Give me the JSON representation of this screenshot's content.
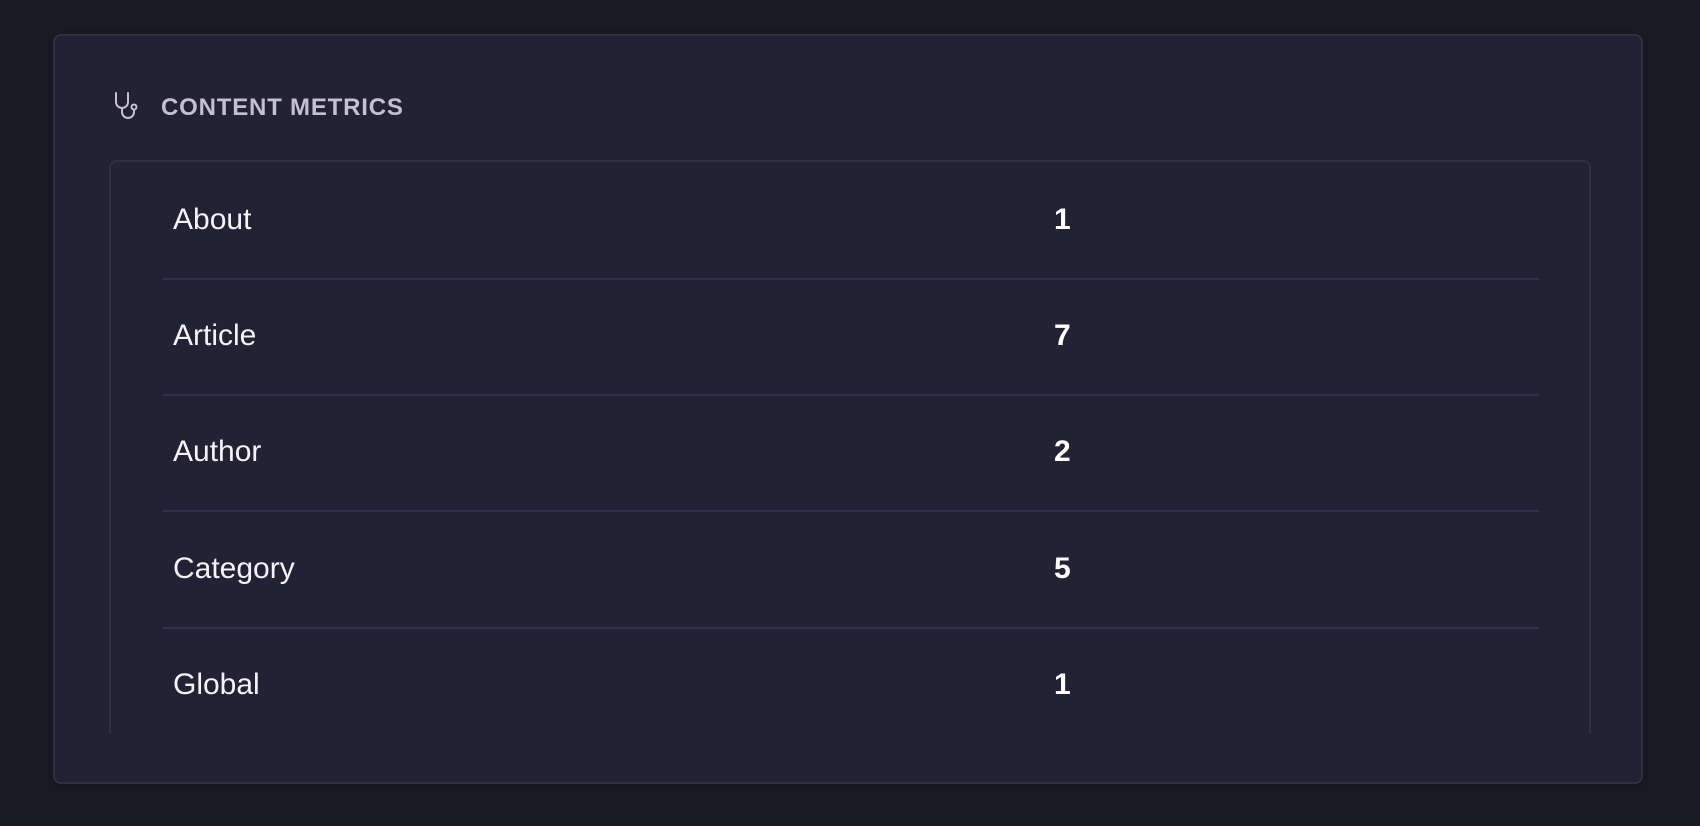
{
  "panel": {
    "title": "CONTENT METRICS",
    "icon": "stethoscope-icon",
    "rows": [
      {
        "label": "About",
        "value": "1"
      },
      {
        "label": "Article",
        "value": "7"
      },
      {
        "label": "Author",
        "value": "2"
      },
      {
        "label": "Category",
        "value": "5"
      },
      {
        "label": "Global",
        "value": "1"
      }
    ]
  }
}
